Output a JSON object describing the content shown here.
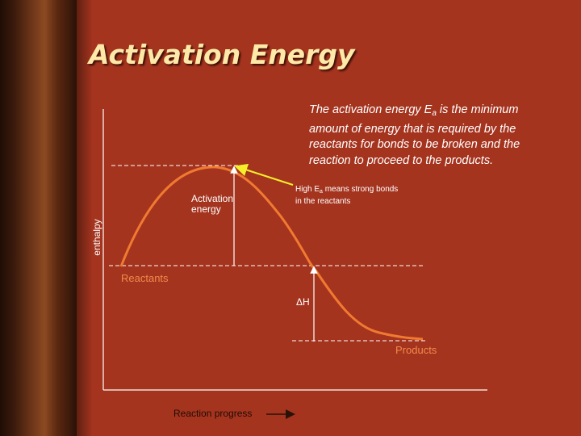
{
  "slide": {
    "title": "Activation Energy",
    "description": {
      "text_before_sub": "The activation energy E",
      "subscript": "a",
      "text_after_sub": " is the minimum amount of energy that is required by the reactants for bonds to be broken and the reaction to proceed to the products."
    },
    "labels": {
      "activation_energy": "Activation energy",
      "high_ea_before": "High E",
      "high_ea_sub": "a",
      "high_ea_after": " means strong bonds in the reactants",
      "reactants": "Reactants",
      "delta_h": "ΔH",
      "products": "Products",
      "y_axis": "enthalpy",
      "x_axis": "Reaction progress"
    },
    "colors": {
      "background": "#a5341f",
      "title": "#ffe9a8",
      "curve": "#f07a30",
      "pointer_arrow": "#f5ef2a",
      "axis": "#ffffff"
    }
  }
}
